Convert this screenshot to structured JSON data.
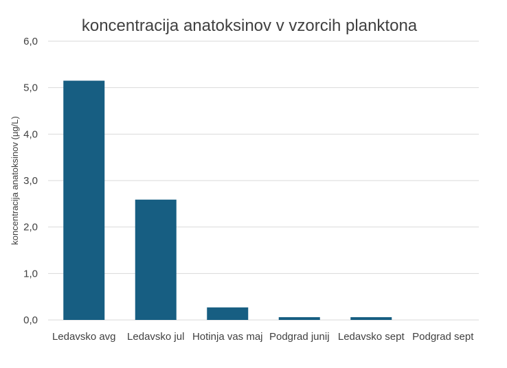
{
  "chart_data": {
    "type": "bar",
    "title": "koncentracija anatoksinov v vzorcih planktona",
    "xlabel": "",
    "ylabel": "koncentracija anatoksinov (µg/L)",
    "categories": [
      "Ledavsko avg",
      "Ledavsko jul",
      "Hotinja vas maj",
      "Podgrad junij",
      "Ledavsko sept",
      "Podgrad sept"
    ],
    "values": [
      5.15,
      2.59,
      0.27,
      0.06,
      0.06,
      0.0
    ],
    "ylim": [
      0,
      6
    ],
    "yticks": [
      "0,0",
      "1,0",
      "2,0",
      "3,0",
      "4,0",
      "5,0",
      "6,0"
    ],
    "grid": true,
    "bar_color": "#175e82"
  }
}
